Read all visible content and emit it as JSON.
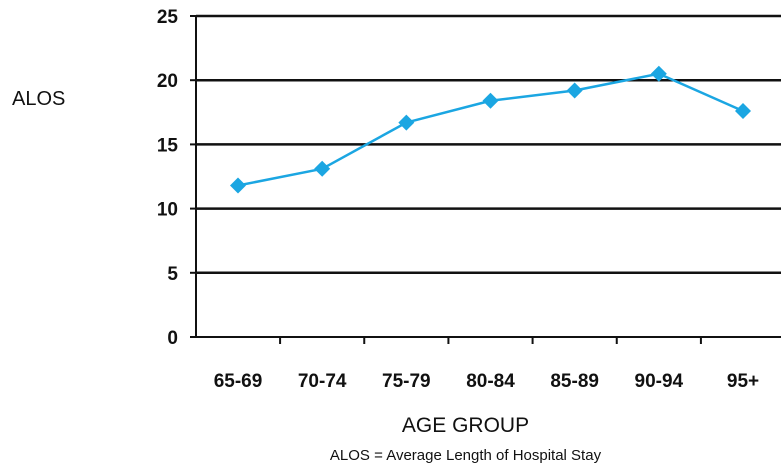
{
  "chart_data": {
    "type": "line",
    "categories": [
      "65-69",
      "70-74",
      "75-79",
      "80-84",
      "85-89",
      "90-94",
      "95+"
    ],
    "series": [
      {
        "values": [
          11.8,
          13.1,
          16.7,
          18.4,
          19.2,
          20.5,
          17.6
        ]
      }
    ],
    "ylabel": "ALOS",
    "xlabel": "AGE GROUP",
    "footnote": "ALOS = Average Length of Hospital Stay",
    "ylim": [
      0,
      25
    ],
    "yticks": [
      0,
      5,
      10,
      15,
      20,
      25
    ],
    "grid": true,
    "line_color": "#1BA6E2"
  }
}
